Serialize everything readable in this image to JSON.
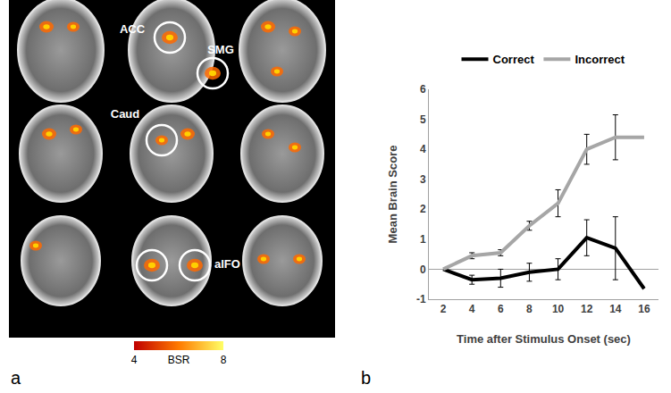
{
  "panel_labels": [
    "a",
    "b"
  ],
  "panel_a": {
    "regions": [
      "ACC",
      "SMG",
      "Caud",
      "aIFO"
    ],
    "colorbar": {
      "title": "BSR",
      "range": [
        4,
        8
      ],
      "ticks": [
        4,
        8
      ]
    }
  },
  "chart_data": {
    "type": "line",
    "x_label": "Time after Stimulus Onset (sec)",
    "y_label": "Mean Brain Score",
    "x": [
      2,
      4,
      6,
      8,
      10,
      12,
      14,
      16
    ],
    "series": [
      {
        "name": "Correct",
        "color": "#000000",
        "values": [
          0,
          -0.35,
          -0.3,
          -0.1,
          0.0,
          1.05,
          0.7,
          -0.65
        ],
        "error": [
          null,
          0.15,
          0.3,
          0.3,
          0.35,
          0.6,
          1.05,
          null
        ]
      },
      {
        "name": "Incorrect",
        "color": "#a6a6a6",
        "values": [
          0,
          0.45,
          0.55,
          1.45,
          2.2,
          4.0,
          4.4,
          4.4
        ],
        "error": [
          null,
          0.1,
          0.1,
          0.15,
          0.45,
          0.5,
          0.75,
          null
        ]
      }
    ],
    "xlim": [
      1,
      17
    ],
    "xticks": [
      2,
      4,
      6,
      8,
      10,
      12,
      14,
      16
    ],
    "ylim": [
      -1,
      6
    ],
    "yticks": [
      -1,
      0,
      1,
      2,
      3,
      4,
      5,
      6
    ],
    "grid": false,
    "legend": "top"
  }
}
